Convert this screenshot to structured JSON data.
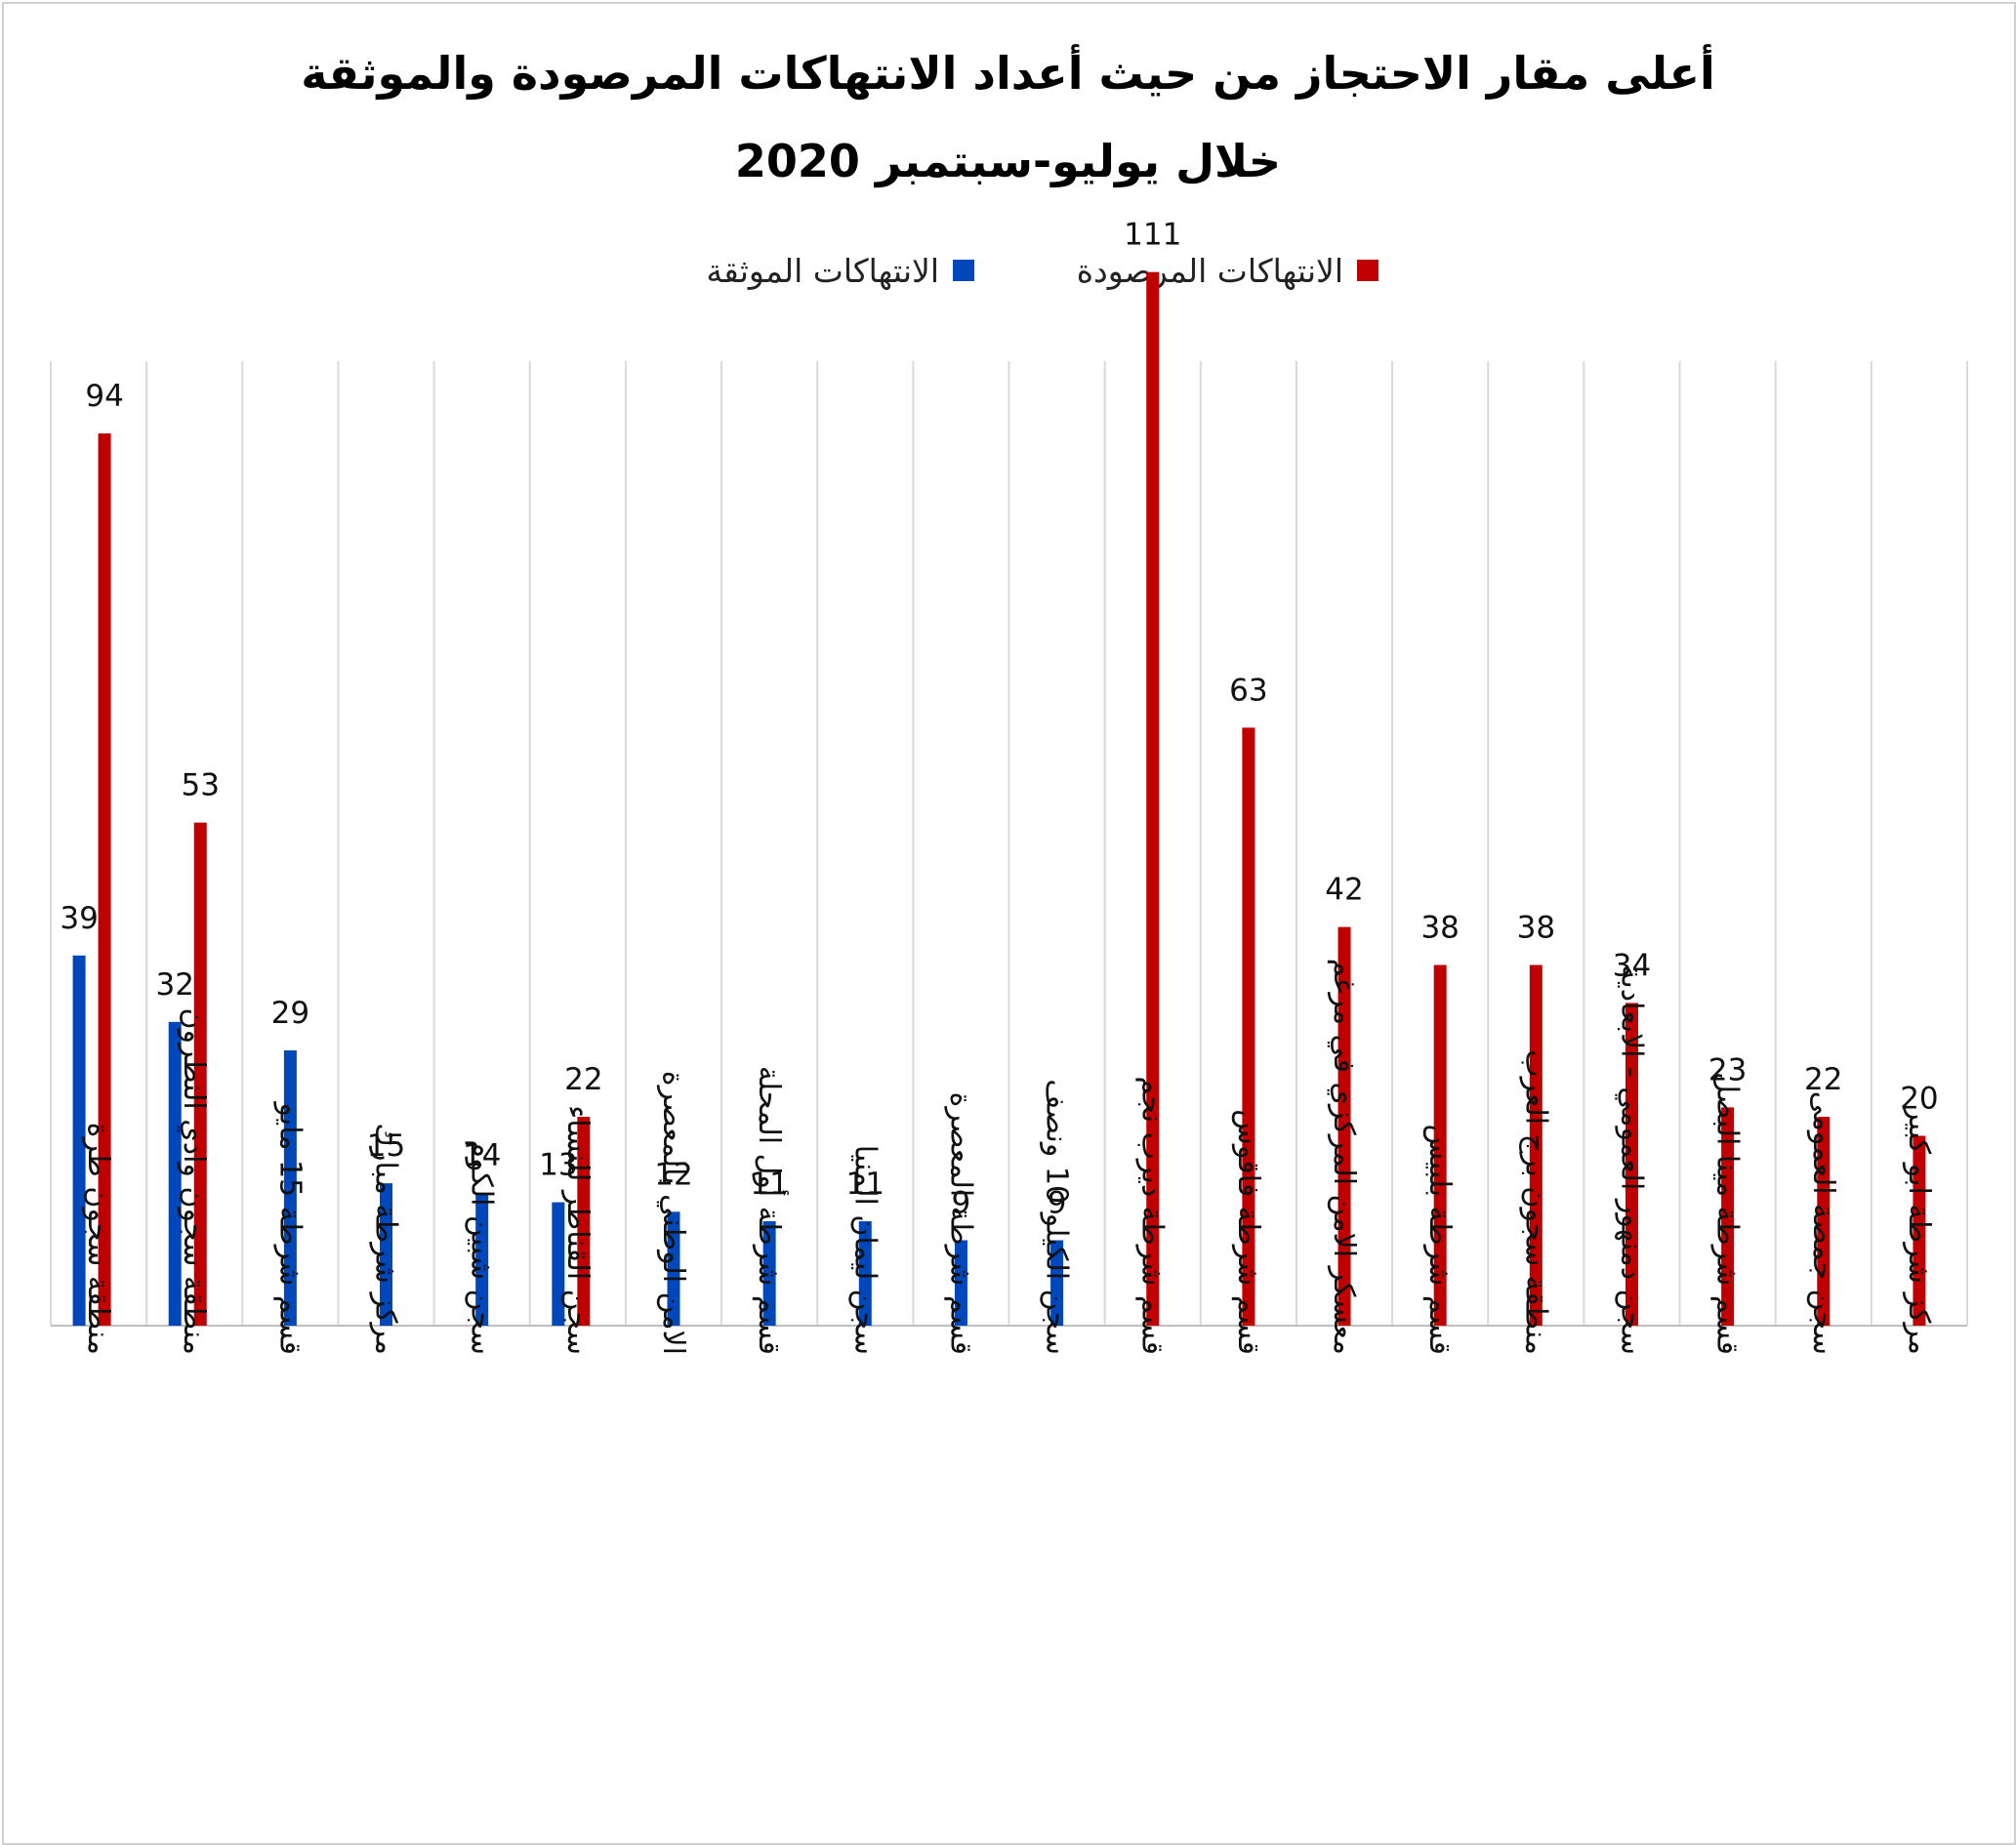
{
  "title": {
    "line1": "أعلى مقار الاحتجاز من حيث أعداد الانتهاكات المرصودة والموثقة",
    "line2": "خلال يوليو-سبتمبر 2020"
  },
  "legend": {
    "observed": "الانتهاكات المرصودة",
    "documented": "الانتهاكات الموثقة"
  },
  "colors": {
    "documented": "#0047BB",
    "observed": "#C00000",
    "grid": "#D9D9D9",
    "axis": "#BFBFBF"
  },
  "chart_data": {
    "type": "bar",
    "title": "أعلى مقار الاحتجاز من حيث أعداد الانتهاكات المرصودة والموثقة خلال يوليو-سبتمبر 2020",
    "categories": [
      "منطقة سجون طرة",
      "منطقة سجون وادي النطرون",
      "قسم شرطة 15 مايو",
      "مركز شرطة مبارك",
      "سجن شبين الكوم",
      "سجن القناطر للنساء",
      "الامن الوطني بالمعصرة",
      "قسم شرطة أول المحلة",
      "سجن ليمان المنيا",
      "قسم شرطة المعصرة",
      "سجن الكيلو 10 ونصف",
      "قسم شرطة ديرب نجم",
      "قسم شرطة فاقوس",
      "معسكر الامن المركزي في مرغم",
      "قسم شرطة بلبيس",
      "منطقة سجون برج العرب",
      "سجن دمنهور العمومي - الابعادية",
      "قسم شرطة مينا البصل",
      "سجن جمصة العمومى",
      "مركز شرطة ابو كبير"
    ],
    "series": [
      {
        "name": "الانتهاكات الموثقة",
        "color": "#0047BB",
        "values": [
          39,
          32,
          29,
          15,
          14,
          13,
          12,
          11,
          11,
          9,
          9,
          null,
          null,
          null,
          null,
          null,
          null,
          null,
          null,
          null
        ]
      },
      {
        "name": "الانتهاكات المرصودة",
        "color": "#C00000",
        "values": [
          94,
          53,
          null,
          null,
          null,
          22,
          null,
          null,
          null,
          null,
          null,
          111,
          63,
          42,
          38,
          38,
          34,
          23,
          22,
          20
        ]
      }
    ],
    "ylim": [
      0,
      115
    ],
    "grid": "vertical",
    "legend_position": "top",
    "data_labels": true
  }
}
